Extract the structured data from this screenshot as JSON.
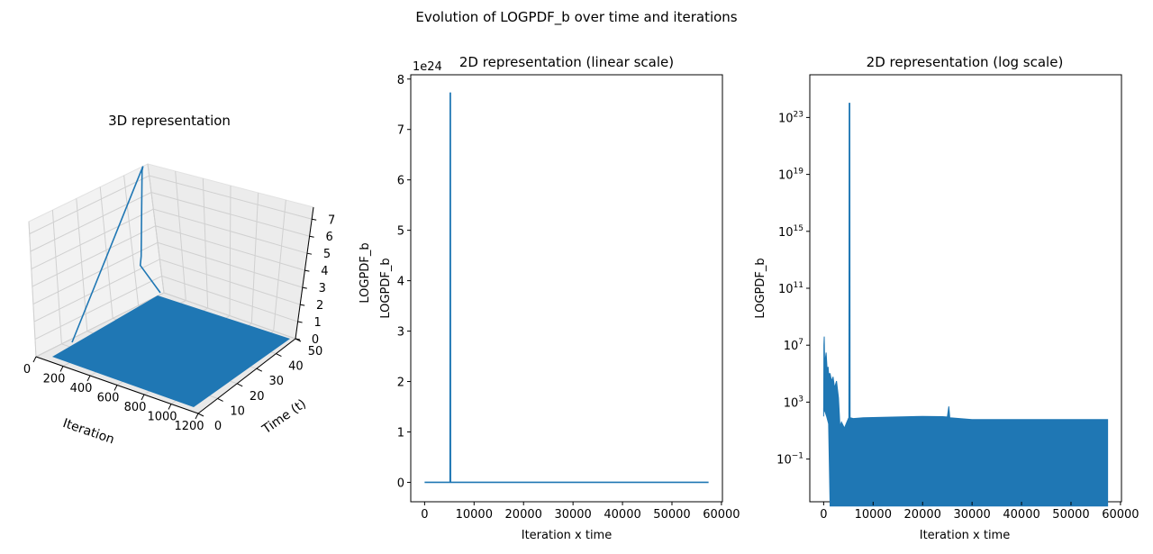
{
  "figure": {
    "suptitle": "Evolution of LOGPDF_b over time and iterations"
  },
  "colors": {
    "series": "#1f77b4",
    "axes": "#000000",
    "pane": "#f2f2f2",
    "grid": "#d0d0d0"
  },
  "chart_data": [
    {
      "type": "surface3d",
      "title": "3D representation",
      "xlabel": "Iteration",
      "ylabel": "Time (t)",
      "zlabel": "",
      "xlim": [
        0,
        1200
      ],
      "ylim": [
        0,
        50
      ],
      "zlim": [
        0,
        7.7
      ],
      "xticks": [
        "0",
        "200",
        "400",
        "600",
        "800",
        "1000",
        "1200"
      ],
      "yticks": [
        "0",
        "10",
        "20",
        "30",
        "40",
        "50"
      ],
      "zticks": [
        "0",
        "1",
        "2",
        "3",
        "4",
        "5",
        "6",
        "7"
      ],
      "spike": {
        "iteration": 0,
        "time": 48,
        "value": 7.7
      },
      "grid": true
    },
    {
      "type": "line",
      "title": "2D representation (linear scale)",
      "xlabel": "Iteration x time",
      "ylabel": "LOGPDF_b",
      "ylabel_outer": "LOGPDF_b",
      "offset_text": "1e24",
      "xlim": [
        -2800,
        60200
      ],
      "ylim": [
        -0.385,
        8.085
      ],
      "xticks": [
        "0",
        "10000",
        "20000",
        "30000",
        "40000",
        "50000",
        "60000"
      ],
      "yticks": [
        "0",
        "1",
        "2",
        "3",
        "4",
        "5",
        "6",
        "7",
        "8"
      ],
      "series": [
        {
          "x": [
            0,
            5150,
            5180,
            5210,
            5240,
            5280,
            57400
          ],
          "y": [
            0,
            0,
            7.72,
            7.72,
            0,
            0,
            0
          ]
        }
      ],
      "grid": false
    },
    {
      "type": "line",
      "yscale": "log",
      "title": "2D representation (log scale)",
      "xlabel": "Iteration x time",
      "ylabel": "LOGPDF_b",
      "xlim": [
        -2800,
        60200
      ],
      "ylim": [
        0.0001,
        1e+26
      ],
      "xticks": [
        "0",
        "10000",
        "20000",
        "30000",
        "40000",
        "50000",
        "60000"
      ],
      "yticks": [
        {
          "base": "10",
          "exp": "−1"
        },
        {
          "base": "10",
          "exp": "3"
        },
        {
          "base": "10",
          "exp": "7"
        },
        {
          "base": "10",
          "exp": "11"
        },
        {
          "base": "10",
          "exp": "15"
        },
        {
          "base": "10",
          "exp": "19"
        },
        {
          "base": "10",
          "exp": "23"
        }
      ],
      "series": [
        {
          "envelope_top": [
            [
              0,
              100
            ],
            [
              50,
              10000000.0
            ],
            [
              120,
              40000000.0
            ],
            [
              200,
              500000.0
            ],
            [
              500,
              3000000.0
            ],
            [
              700,
              200000.0
            ],
            [
              900,
              300000.0
            ],
            [
              1000,
              100000.0
            ],
            [
              1300,
              100000.0
            ],
            [
              1600,
              30000.0
            ],
            [
              1900,
              60000.0
            ],
            [
              2200,
              10000.0
            ],
            [
              2600,
              30000.0
            ],
            [
              3000,
              2000.0
            ],
            [
              3300,
              20
            ],
            [
              3600,
              40
            ],
            [
              4200,
              15
            ],
            [
              4700,
              40
            ],
            [
              5000,
              70
            ],
            [
              5100,
              80
            ],
            [
              5150,
              1e+24
            ],
            [
              5300,
              1e+24
            ],
            [
              5350,
              80
            ],
            [
              6000,
              70
            ],
            [
              8000,
              80
            ],
            [
              20000,
              100
            ],
            [
              24000,
              95
            ],
            [
              25000,
              90
            ],
            [
              25300,
              500
            ],
            [
              25500,
              80
            ],
            [
              30000,
              60
            ],
            [
              57400,
              60
            ]
          ],
          "envelope_bottom": [
            [
              0,
              300
            ],
            [
              300,
              200
            ],
            [
              600,
              100
            ],
            [
              1000,
              30
            ],
            [
              1300,
              5e-05
            ],
            [
              57400,
              5e-05
            ]
          ]
        }
      ],
      "grid": false
    }
  ]
}
